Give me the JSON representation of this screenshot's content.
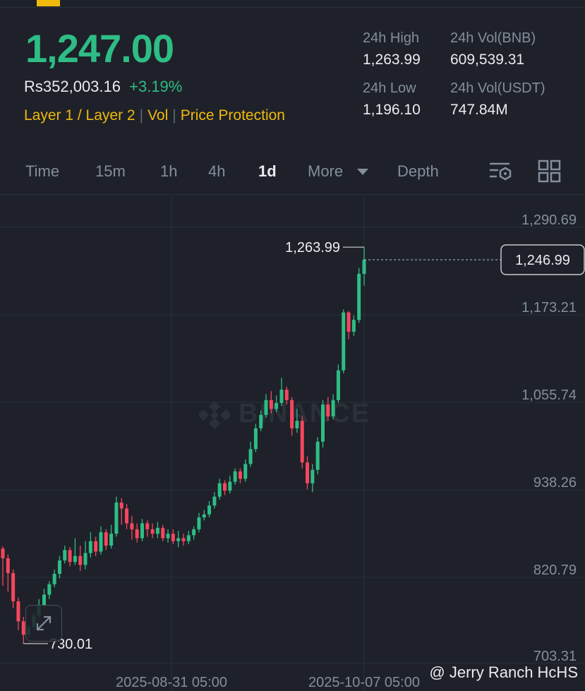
{
  "ticker": {
    "last_price": "1,247.00",
    "fiat_price": "Rs352,003.16",
    "change_pct": "+3.19%",
    "tags": [
      "Layer 1 / Layer 2",
      "Vol",
      "Price Protection"
    ],
    "stats": {
      "high_label": "24h High",
      "high_value": "1,263.99",
      "low_label": "24h Low",
      "low_value": "1,196.10",
      "vol_base_label": "24h Vol(BNB)",
      "vol_base_value": "609,539.31",
      "vol_quote_label": "24h Vol(USDT)",
      "vol_quote_value": "747.84M"
    }
  },
  "tabs": {
    "time": "Time",
    "m15": "15m",
    "h1": "1h",
    "h4": "4h",
    "d1": "1d",
    "more": "More",
    "depth": "Depth",
    "active": "1d"
  },
  "icons": {
    "chevron": "caret-down-icon",
    "settings": "chart-settings-icon",
    "layout": "grid-layout-icon",
    "expand": "expand-icon",
    "logo": "binance-logo-icon"
  },
  "colors": {
    "up": "#2ebd85",
    "down": "#f6465d",
    "accent": "#f0b90b",
    "bg": "#1e2129"
  },
  "chart_data": {
    "type": "candlestick",
    "y_ticks": [
      "1,290.69",
      "1,173.21",
      "1,055.74",
      "938.26",
      "820.79",
      "703.31"
    ],
    "x_ticks": [
      "2025-08-31 05:00",
      "2025-10-07 05:00"
    ],
    "ylim": [
      703.31,
      1290.69
    ],
    "current_price": "1,246.99",
    "high_marker": "1,263.99",
    "low_marker": "730.01",
    "watermark": "BINANCE",
    "candles": [
      [
        858,
        845,
        861,
        808
      ],
      [
        845,
        825,
        850,
        800
      ],
      [
        825,
        787,
        830,
        778
      ],
      [
        787,
        760,
        792,
        748
      ],
      [
        760,
        742,
        766,
        730
      ],
      [
        742,
        752,
        756,
        738
      ],
      [
        752,
        768,
        772,
        748
      ],
      [
        768,
        782,
        790,
        764
      ],
      [
        782,
        796,
        804,
        778
      ],
      [
        796,
        810,
        814,
        790
      ],
      [
        810,
        824,
        830,
        806
      ],
      [
        824,
        842,
        848,
        818
      ],
      [
        842,
        856,
        862,
        838
      ],
      [
        856,
        840,
        860,
        834
      ],
      [
        840,
        848,
        872,
        836
      ],
      [
        848,
        836,
        862,
        828
      ],
      [
        836,
        852,
        868,
        830
      ],
      [
        852,
        868,
        880,
        846
      ],
      [
        868,
        854,
        874,
        848
      ],
      [
        854,
        880,
        888,
        850
      ],
      [
        880,
        862,
        884,
        856
      ],
      [
        862,
        878,
        890,
        858
      ],
      [
        878,
        920,
        928,
        874
      ],
      [
        920,
        912,
        926,
        890
      ],
      [
        912,
        892,
        918,
        884
      ],
      [
        892,
        884,
        902,
        870
      ],
      [
        884,
        872,
        892,
        866
      ],
      [
        872,
        892,
        898,
        868
      ],
      [
        892,
        884,
        896,
        874
      ],
      [
        884,
        878,
        892,
        872
      ],
      [
        878,
        886,
        894,
        872
      ],
      [
        886,
        872,
        890,
        868
      ],
      [
        872,
        878,
        884,
        866
      ],
      [
        878,
        868,
        884,
        864
      ],
      [
        868,
        872,
        882,
        860
      ],
      [
        872,
        868,
        878,
        862
      ],
      [
        868,
        876,
        882,
        864
      ],
      [
        876,
        884,
        888,
        870
      ],
      [
        884,
        900,
        906,
        880
      ],
      [
        900,
        904,
        910,
        896
      ],
      [
        904,
        916,
        922,
        900
      ],
      [
        916,
        928,
        934,
        912
      ],
      [
        928,
        946,
        952,
        924
      ],
      [
        946,
        936,
        950,
        930
      ],
      [
        936,
        948,
        956,
        932
      ],
      [
        948,
        962,
        966,
        944
      ],
      [
        962,
        952,
        966,
        946
      ],
      [
        952,
        972,
        978,
        948
      ],
      [
        972,
        992,
        1002,
        968
      ],
      [
        992,
        1020,
        1026,
        988
      ],
      [
        1020,
        1038,
        1044,
        1016
      ],
      [
        1038,
        1058,
        1066,
        1034
      ],
      [
        1058,
        1046,
        1070,
        1040
      ],
      [
        1046,
        1054,
        1064,
        1042
      ],
      [
        1054,
        1072,
        1088,
        1050
      ],
      [
        1072,
        1058,
        1076,
        1052
      ],
      [
        1058,
        1020,
        1062,
        1010
      ],
      [
        1020,
        1030,
        1046,
        1014
      ],
      [
        1030,
        974,
        1036,
        966
      ],
      [
        974,
        946,
        982,
        938
      ],
      [
        946,
        964,
        972,
        934
      ],
      [
        964,
        1002,
        1008,
        958
      ],
      [
        1002,
        1052,
        1058,
        994
      ],
      [
        1052,
        1036,
        1062,
        1030
      ],
      [
        1036,
        1058,
        1066,
        1032
      ],
      [
        1058,
        1098,
        1106,
        1054
      ],
      [
        1098,
        1176,
        1180,
        1094
      ],
      [
        1176,
        1150,
        1178,
        1140
      ],
      [
        1150,
        1166,
        1172,
        1144
      ],
      [
        1166,
        1228,
        1236,
        1162
      ],
      [
        1228,
        1247,
        1264,
        1212
      ]
    ]
  }
}
